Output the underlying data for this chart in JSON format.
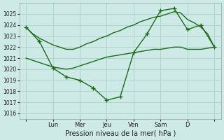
{
  "background_color": "#ceeae6",
  "grid_color": "#b0d4cc",
  "line_color": "#1a6b1a",
  "xlabel": "Pression niveau de la mer( hPa )",
  "ylim": [
    1015.5,
    1026.0
  ],
  "yticks": [
    1016,
    1017,
    1018,
    1019,
    1020,
    1021,
    1022,
    1023,
    1024,
    1025
  ],
  "day_positions": [
    0,
    24,
    48,
    72,
    96,
    120,
    144,
    168
  ],
  "day_labels": [
    "",
    "Lun",
    "Mer",
    "Jeu",
    "Ven",
    "Sam",
    "D",
    ""
  ],
  "xlim": [
    -6,
    174
  ],
  "line1_x": [
    0,
    6,
    12,
    18,
    24,
    30,
    36,
    42,
    48,
    54,
    60,
    66,
    72,
    78,
    84,
    90,
    96,
    102,
    108,
    114,
    120,
    126,
    132,
    138,
    144,
    150,
    156,
    162,
    168
  ],
  "line1_y": [
    1023.8,
    1023.2,
    1022.8,
    1022.5,
    1022.2,
    1022.0,
    1021.8,
    1021.8,
    1022.0,
    1022.3,
    1022.5,
    1022.8,
    1023.0,
    1023.3,
    1023.5,
    1023.8,
    1024.0,
    1024.3,
    1024.5,
    1024.7,
    1024.8,
    1025.0,
    1025.2,
    1025.1,
    1024.5,
    1024.2,
    1023.8,
    1023.2,
    1022.0
  ],
  "line2_x": [
    0,
    6,
    12,
    18,
    24,
    30,
    36,
    42,
    48,
    54,
    60,
    66,
    72,
    78,
    84,
    90,
    96,
    102,
    108,
    114,
    120,
    126,
    132,
    138,
    144,
    150,
    156,
    162,
    168
  ],
  "line2_y": [
    1021.0,
    1020.8,
    1020.6,
    1020.4,
    1020.2,
    1020.1,
    1020.0,
    1020.1,
    1020.3,
    1020.5,
    1020.7,
    1020.9,
    1021.1,
    1021.2,
    1021.3,
    1021.4,
    1021.5,
    1021.6,
    1021.7,
    1021.8,
    1021.8,
    1021.9,
    1022.0,
    1022.0,
    1021.8,
    1021.8,
    1021.8,
    1021.9,
    1022.0
  ],
  "line3_x": [
    0,
    12,
    24,
    36,
    48,
    60,
    72,
    84,
    96,
    108,
    120,
    132,
    144,
    156,
    168
  ],
  "line3_y": [
    1023.8,
    1022.5,
    1020.1,
    1019.3,
    1019.0,
    1018.3,
    1017.2,
    1017.5,
    1021.5,
    1023.2,
    1025.3,
    1025.5,
    1023.6,
    1024.0,
    1022.0
  ]
}
